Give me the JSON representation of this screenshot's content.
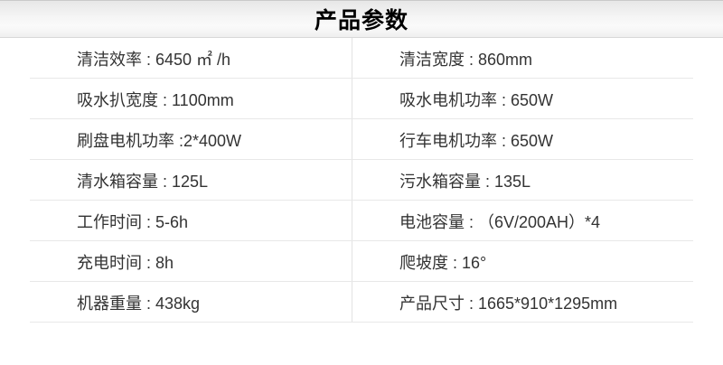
{
  "header": {
    "title": "产品参数"
  },
  "colors": {
    "header_gradient_top": "#e7e7e7",
    "header_gradient_bottom": "#efefef",
    "header_border": "#d8d8d8",
    "column_divider": "#e2e2e2",
    "row_separator": "#e8e8e8",
    "title_text": "#000000",
    "body_text": "#333333",
    "background": "#ffffff"
  },
  "table": {
    "rows": [
      {
        "left": "清洁效率 : 6450 ㎡ /h",
        "right": "清洁宽度 : 860mm"
      },
      {
        "left": "吸水扒宽度 : 1100mm",
        "right": "吸水电机功率 : 650W"
      },
      {
        "left": "刷盘电机功率 :2*400W",
        "right": "行车电机功率 : 650W"
      },
      {
        "left": "清水箱容量 : 125L",
        "right": "污水箱容量 : 135L"
      },
      {
        "left": "工作时间 : 5-6h",
        "right": "电池容量 : （6V/200AH）*4"
      },
      {
        "left": "充电时间 : 8h",
        "right": "爬坡度 : 16°"
      },
      {
        "left": "机器重量 : 438kg",
        "right": "产品尺寸 : 1665*910*1295mm"
      }
    ]
  }
}
